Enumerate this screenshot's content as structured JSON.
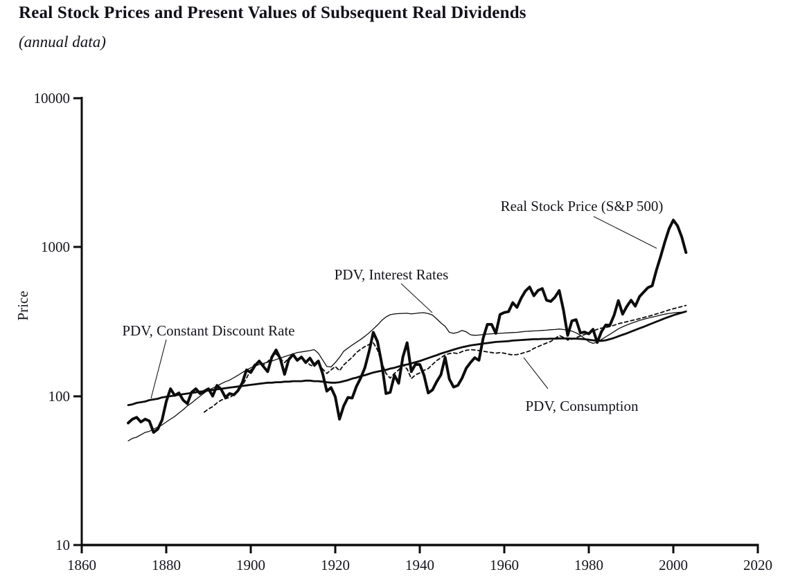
{
  "page": {
    "title": "Real Stock Prices and Present Values of Subsequent Real Dividends",
    "subtitle": "(annual data)"
  },
  "colors": {
    "ink": "#0c0c0c",
    "text": "#15151c",
    "background": "#ffffff"
  },
  "chart_data": {
    "type": "line",
    "title": "Real Stock Prices and Present Values of Subsequent Real Dividends",
    "subtitle": "(annual data)",
    "xlabel": "",
    "ylabel": "Price",
    "grid": false,
    "legend": "inline-annotations",
    "x_axis": {
      "min": 1860,
      "max": 2020,
      "ticks": [
        1860,
        1880,
        1900,
        1920,
        1940,
        1960,
        1980,
        2000,
        2020
      ]
    },
    "y_axis": {
      "scale": "log",
      "min": 10,
      "max": 10000,
      "ticks": [
        10,
        100,
        1000,
        10000
      ]
    },
    "series": [
      {
        "id": "pdv-constant-discount-rate",
        "label": "PDV, Constant Discount Rate",
        "style": "solid",
        "stroke_width": 2.8,
        "dash": null,
        "start_year": 1871,
        "values": [
          87,
          88,
          90,
          91,
          92,
          94,
          95,
          96,
          98,
          99,
          100,
          101,
          102,
          103,
          104,
          105,
          106,
          107,
          108,
          109,
          110,
          111,
          112,
          113,
          114,
          115,
          116,
          117,
          118,
          119,
          120,
          121,
          122,
          123,
          123,
          124,
          124,
          125,
          125,
          126,
          126,
          126,
          127,
          127,
          126,
          126,
          125,
          124,
          123,
          123,
          124,
          126,
          128,
          131,
          133,
          136,
          138,
          141,
          144,
          146,
          148,
          150,
          153,
          155,
          158,
          161,
          163,
          166,
          169,
          172,
          176,
          180,
          184,
          188,
          193,
          197,
          201,
          205,
          209,
          213,
          216,
          219,
          221,
          223,
          225,
          227,
          229,
          231,
          232,
          233,
          234,
          236,
          237,
          238,
          239,
          240,
          241,
          241,
          242,
          242,
          243,
          243,
          244,
          244,
          244,
          243,
          243,
          242,
          241,
          239,
          237,
          235,
          235,
          237,
          241,
          246,
          252,
          258,
          264,
          271,
          278,
          285,
          292,
          300,
          308,
          316,
          324,
          333,
          341,
          349,
          356,
          363,
          370
        ]
      },
      {
        "id": "pdv-interest-rates",
        "label": "PDV, Interest Rates",
        "style": "solid",
        "stroke_width": 1.3,
        "dash": null,
        "start_year": 1871,
        "values": [
          50,
          52,
          53,
          55,
          57,
          58,
          60,
          62,
          64,
          67,
          70,
          73,
          77,
          81,
          86,
          90,
          95,
          100,
          105,
          110,
          113,
          117,
          121,
          125,
          128,
          133,
          138,
          144,
          150,
          155,
          159,
          163,
          166,
          169,
          172,
          176,
          180,
          184,
          188,
          192,
          196,
          198,
          200,
          202,
          205,
          194,
          175,
          158,
          157,
          168,
          182,
          200,
          210,
          220,
          230,
          240,
          252,
          266,
          282,
          300,
          322,
          340,
          352,
          356,
          358,
          359,
          360,
          356,
          359,
          362,
          363,
          358,
          350,
          330,
          310,
          294,
          268,
          264,
          268,
          276,
          270,
          258,
          256,
          257,
          259,
          261,
          262,
          263,
          264,
          265,
          266,
          267,
          268,
          270,
          272,
          273,
          274,
          275,
          276,
          277,
          279,
          280,
          282,
          280,
          277,
          273,
          266,
          256,
          244,
          232,
          226,
          230,
          240,
          250,
          260,
          271,
          283,
          292,
          300,
          308,
          315,
          322,
          328,
          334,
          339,
          344,
          350,
          355,
          359,
          362,
          364,
          366,
          368
        ]
      },
      {
        "id": "pdv-consumption",
        "label": "PDV, Consumption",
        "style": "dashed",
        "stroke_width": 1.8,
        "dash": "5 4",
        "start_year": 1889,
        "values": [
          78,
          82,
          85,
          90,
          94,
          96,
          98,
          102,
          108,
          118,
          132,
          150,
          165,
          172,
          162,
          170,
          183,
          192,
          178,
          168,
          180,
          188,
          178,
          182,
          172,
          162,
          158,
          168,
          152,
          142,
          150,
          158,
          148,
          162,
          172,
          182,
          196,
          206,
          215,
          222,
          228,
          204,
          168,
          142,
          132,
          142,
          150,
          162,
          152,
          131,
          139,
          143,
          149,
          153,
          163,
          173,
          181,
          189,
          193,
          195,
          193,
          199,
          203,
          205,
          204,
          202,
          200,
          198,
          196,
          194,
          196,
          194,
          191,
          189,
          190,
          193,
          197,
          201,
          209,
          215,
          221,
          227,
          233,
          243,
          255,
          248,
          238,
          241,
          247,
          253,
          259,
          265,
          273,
          281,
          286,
          289,
          293,
          299,
          306,
          311,
          316,
          321,
          326,
          331,
          337,
          343,
          349,
          356,
          363,
          371,
          379,
          386,
          393,
          399,
          406
        ]
      },
      {
        "id": "real-stock-price",
        "label": "Real Stock Price (S&P 500)",
        "style": "solid",
        "stroke_width": 4,
        "dash": null,
        "start_year": 1871,
        "values": [
          66,
          70,
          72,
          67,
          70,
          68,
          57,
          60,
          69,
          92,
          112,
          101,
          105,
          94,
          89,
          106,
          112,
          104,
          108,
          112,
          100,
          118,
          111,
          98,
          104,
          102,
          109,
          123,
          150,
          144,
          160,
          172,
          158,
          146,
          183,
          204,
          178,
          140,
          176,
          190,
          174,
          183,
          168,
          180,
          162,
          172,
          142,
          108,
          114,
          99,
          70,
          86,
          98,
          97,
          116,
          132,
          155,
          199,
          268,
          232,
          165,
          104,
          106,
          138,
          122,
          183,
          228,
          146,
          164,
          163,
          138,
          105,
          110,
          125,
          139,
          182,
          130,
          115,
          118,
          132,
          154,
          168,
          181,
          174,
          245,
          303,
          303,
          264,
          353,
          364,
          369,
          424,
          394,
          455,
          508,
          540,
          472,
          513,
          527,
          440,
          432,
          462,
          511,
          379,
          256,
          320,
          326,
          266,
          269,
          262,
          281,
          229,
          271,
          300,
          299,
          350,
          438,
          355,
          400,
          440,
          402,
          465,
          500,
          535,
          550,
          700,
          865,
          1085,
          1330,
          1520,
          1390,
          1170,
          920
        ]
      }
    ],
    "annotations": [
      {
        "label": "Real Stock Price (S&P 500)"
      },
      {
        "label": "PDV, Interest Rates"
      },
      {
        "label": "PDV, Constant Discount Rate"
      },
      {
        "label": "PDV, Consumption"
      }
    ]
  }
}
